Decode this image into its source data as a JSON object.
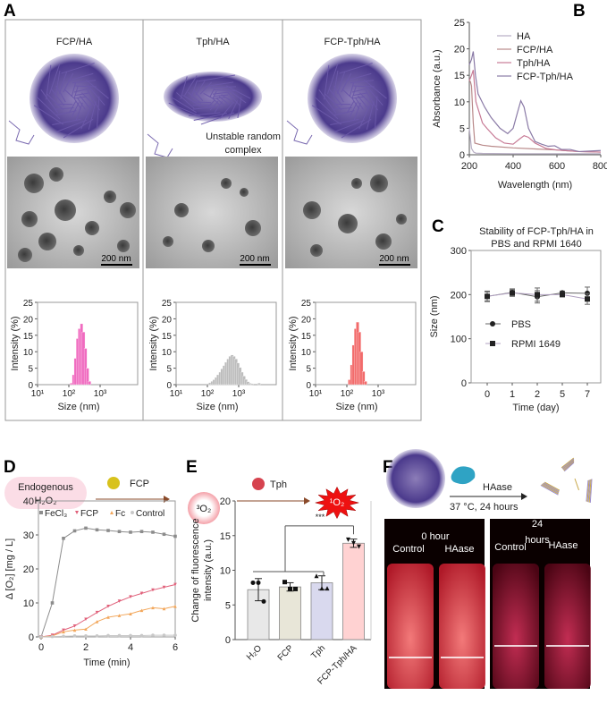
{
  "panels": {
    "A": {
      "label": "A",
      "columns": [
        {
          "title": "FCP/HA",
          "scale_bar": "200 nm"
        },
        {
          "title": "Tph/HA",
          "scale_bar": "200 nm",
          "note_line1": "Unstable random",
          "note_line2": "complex"
        },
        {
          "title": "FCP-Tph/HA",
          "scale_bar": "200 nm"
        }
      ]
    },
    "B": {
      "label": "B"
    },
    "C": {
      "label": "C"
    },
    "D": {
      "label": "D",
      "scheme": {
        "source_line1": "Endogenous",
        "source_line2": "H₂O₂",
        "catalyst": "FCP"
      }
    },
    "E": {
      "label": "E",
      "scheme": {
        "reactant": "³O₂",
        "sensitizer": "Tph",
        "product": "¹O₂"
      }
    },
    "F": {
      "label": "F",
      "scheme": {
        "enzyme": "HAase",
        "condition": "37 °C, 24 hours"
      },
      "photos": [
        {
          "time": "0 hour",
          "left": "Control",
          "right": "HAase"
        },
        {
          "time_line1": "24",
          "time_line2": "hours",
          "left": "Control",
          "right": "HAase"
        }
      ]
    }
  },
  "chart_data": [
    {
      "id": "A-FCP/HA",
      "type": "bar",
      "xscale": "log",
      "xlabel": "Size (nm)",
      "ylabel": "Intensity (%)",
      "ylim": [
        0,
        25
      ],
      "yticks": [
        0,
        5,
        10,
        15,
        20,
        25
      ],
      "xtick_labels": [
        "10¹",
        "10²",
        "10³"
      ],
      "color": "#f06cc0",
      "x": [
        122,
        142,
        164,
        190,
        220,
        255,
        295,
        342,
        396,
        459
      ],
      "values": [
        0.5,
        3,
        8,
        14,
        17,
        18.5,
        16,
        11,
        5,
        1
      ]
    },
    {
      "id": "A-Tph/HA",
      "type": "bar",
      "xscale": "log",
      "xlabel": "Size (nm)",
      "ylabel": "Intensity (%)",
      "ylim": [
        0,
        25
      ],
      "yticks": [
        0,
        5,
        10,
        15,
        20,
        25
      ],
      "xtick_labels": [
        "10¹",
        "10²",
        "10³"
      ],
      "color": "#bdbdbd",
      "x": [
        106,
        122,
        142,
        164,
        190,
        220,
        255,
        295,
        342,
        396,
        459,
        531,
        615,
        712,
        825,
        955,
        1106,
        1281,
        1484,
        1718,
        1990,
        2305,
        2670,
        4500
      ],
      "values": [
        0.3,
        0.6,
        1,
        1.5,
        2.2,
        3,
        3.8,
        4.8,
        5.8,
        6.8,
        7.8,
        8.6,
        9,
        8.6,
        7.8,
        6.6,
        5.2,
        3.8,
        2.6,
        1.6,
        0.9,
        0.5,
        0.3,
        0.5
      ]
    },
    {
      "id": "A-FCP-Tph/HA",
      "type": "bar",
      "xscale": "log",
      "xlabel": "Size (nm)",
      "ylabel": "Intensity (%)",
      "ylim": [
        0,
        25
      ],
      "yticks": [
        0,
        5,
        10,
        15,
        20,
        25
      ],
      "xtick_labels": [
        "10¹",
        "10²",
        "10³"
      ],
      "color": "#f26b6b",
      "x": [
        122,
        142,
        164,
        190,
        220,
        255,
        295,
        342,
        396
      ],
      "values": [
        1.5,
        6,
        12,
        17,
        19,
        16,
        10,
        4,
        1
      ]
    },
    {
      "id": "B",
      "type": "line",
      "xlabel": "Wavelength (nm)",
      "ylabel": "Absorbance (a.u.)",
      "xlim": [
        200,
        800
      ],
      "ylim": [
        0,
        25
      ],
      "xticks": [
        200,
        400,
        600,
        800
      ],
      "yticks": [
        0,
        5,
        10,
        15,
        20,
        25
      ],
      "legend": "top-right",
      "series": [
        {
          "name": "HA",
          "color": "#b8aec4",
          "x": [
            200,
            205,
            210,
            220,
            230,
            260,
            400,
            800
          ],
          "values": [
            5,
            3,
            1.2,
            0.5,
            0.3,
            0.25,
            0.2,
            0.2
          ]
        },
        {
          "name": "FCP/HA",
          "color": "#b98a8a",
          "x": [
            200,
            205,
            210,
            218,
            225,
            260,
            300,
            400,
            500,
            600,
            700,
            800
          ],
          "values": [
            14,
            13.8,
            13,
            6,
            2.2,
            1.8,
            1.6,
            1.3,
            1.1,
            0.9,
            0.6,
            0.5
          ]
        },
        {
          "name": "Tph/HA",
          "color": "#c77a95",
          "x": [
            200,
            210,
            218,
            230,
            260,
            280,
            320,
            360,
            400,
            430,
            450,
            470,
            500,
            550,
            600,
            700,
            800
          ],
          "values": [
            14,
            15,
            16,
            10,
            6,
            5,
            3.2,
            2.2,
            2,
            3,
            3.6,
            3.3,
            2.2,
            1.2,
            0.9,
            0.6,
            0.5
          ]
        },
        {
          "name": "FCP-Tph/HA",
          "color": "#8a7aa6",
          "x": [
            200,
            210,
            218,
            228,
            240,
            270,
            300,
            340,
            375,
            400,
            420,
            435,
            450,
            470,
            500,
            530,
            560,
            590,
            620,
            660,
            700,
            800
          ],
          "values": [
            17,
            18,
            19.5,
            15,
            11.5,
            9,
            7,
            5,
            4,
            5,
            8,
            10.2,
            9,
            5,
            2.5,
            2,
            1.6,
            1.7,
            1,
            1,
            0.6,
            0.8
          ]
        }
      ]
    },
    {
      "id": "C",
      "type": "line",
      "title_line1": "Stability of FCP-Tph/HA in",
      "title_line2": "PBS and RPMI 1640",
      "xlabel": "Time (day)",
      "ylabel": "Size (nm)",
      "categories": [
        "0",
        "1",
        "2",
        "5",
        "7"
      ],
      "ylim": [
        0,
        300
      ],
      "yticks": [
        0,
        100,
        200,
        300
      ],
      "legend": "center-left",
      "series": [
        {
          "name": "PBS",
          "marker": "circle",
          "color": "#222222",
          "values": [
            196,
            205,
            195,
            204,
            203
          ],
          "error": [
            10,
            8,
            14,
            4,
            14
          ]
        },
        {
          "name": "RPMI 1649",
          "marker": "square",
          "color": "#222222",
          "values": [
            196,
            204,
            200,
            200,
            190
          ],
          "error": [
            12,
            8,
            15,
            5,
            12
          ]
        }
      ]
    },
    {
      "id": "D",
      "type": "line",
      "xlabel": "Time (min)",
      "ylabel": "Δ [O₂] [mg / L]",
      "xlim": [
        0,
        6
      ],
      "ylim": [
        0,
        40
      ],
      "xticks": [
        0,
        2,
        4,
        6
      ],
      "yticks": [
        0,
        10,
        20,
        30,
        40
      ],
      "legend": "top",
      "x": [
        0,
        0.5,
        1,
        1.5,
        2,
        2.5,
        3,
        3.5,
        4,
        4.5,
        5,
        5.5,
        6
      ],
      "series": [
        {
          "name": "FeCl₃",
          "marker": "square",
          "color": "#8c8c8c",
          "values": [
            0,
            10,
            29,
            31.2,
            32,
            31.5,
            31.3,
            31,
            30.8,
            31,
            30.8,
            30.2,
            29.6
          ]
        },
        {
          "name": "FCP",
          "marker": "triangle-down",
          "color": "#e0607a",
          "values": [
            0,
            0.5,
            2,
            3.2,
            5.2,
            7.2,
            9,
            10.5,
            11.8,
            12.8,
            13.8,
            14.6,
            15.4
          ]
        },
        {
          "name": "Fc",
          "marker": "triangle-up",
          "color": "#f2a65a",
          "values": [
            0,
            0.3,
            1.5,
            2,
            2.3,
            4.5,
            5.8,
            6.3,
            6.8,
            7.8,
            8.6,
            8.3,
            9
          ]
        },
        {
          "name": "Control",
          "marker": "circle",
          "color": "#c8c8c8",
          "values": [
            0,
            0.1,
            0.2,
            0.3,
            0.3,
            0.3,
            0.4,
            0.4,
            0.4,
            0.4,
            0.5,
            0.5,
            0.5
          ]
        }
      ]
    },
    {
      "id": "E",
      "type": "bar",
      "ylabel_line1": "Change of fluorescence",
      "ylabel_line2": "intensity (a.u.)",
      "categories": [
        "H₂O",
        "FCP",
        "Tph",
        "FCP-Tph/HA"
      ],
      "values": [
        7.2,
        7.6,
        8.2,
        13.9
      ],
      "error": [
        1.6,
        0.6,
        1.0,
        0.6
      ],
      "points": [
        [
          8.2,
          8.2,
          5.5
        ],
        [
          8.3,
          7.3,
          7.3
        ],
        [
          9.2,
          7.4,
          7.4
        ],
        [
          14.4,
          13.9,
          13.4
        ]
      ],
      "markers": [
        "circle",
        "square",
        "triangle-up",
        "triangle-down"
      ],
      "colors": [
        "#e8e8e8",
        "#e8e6d8",
        "#d9d9ee",
        "#ffd2d2"
      ],
      "ylim": [
        0,
        20
      ],
      "yticks": [
        0,
        5,
        10,
        15,
        20
      ],
      "significance": "***"
    }
  ]
}
